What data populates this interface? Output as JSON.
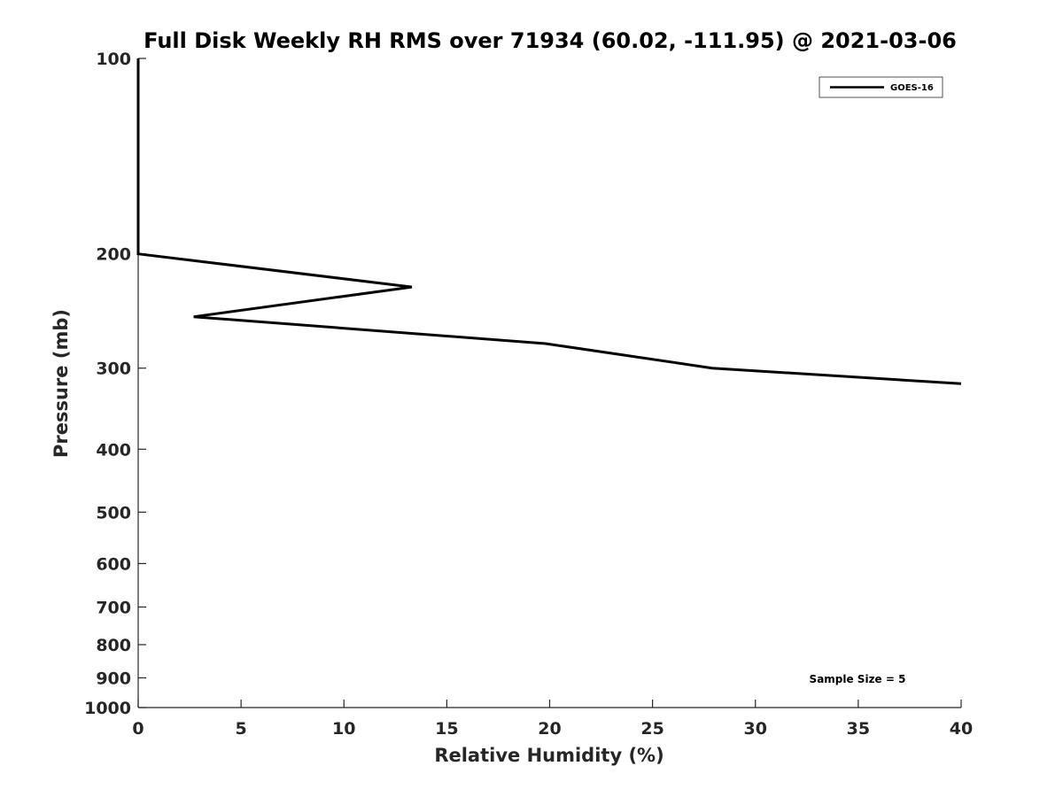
{
  "chart_data": {
    "type": "line",
    "title": "Full Disk Weekly RH RMS over 71934 (60.02, -111.95) @ 2021-03-06",
    "xlabel": "Relative Humidity (%)",
    "ylabel": "Pressure (mb)",
    "xlim": [
      0,
      40
    ],
    "ylim": [
      100,
      1000
    ],
    "y_scale": "log",
    "y_reversed": true,
    "x_ticks": [
      0,
      5,
      10,
      15,
      20,
      25,
      30,
      35,
      40
    ],
    "y_ticks": [
      100,
      200,
      300,
      400,
      500,
      600,
      700,
      800,
      900,
      1000
    ],
    "grid": false,
    "legend_position": "top-right",
    "series": [
      {
        "name": "GOES-16",
        "color": "#000000",
        "points": [
          {
            "x": 0,
            "y": 100
          },
          {
            "x": 0,
            "y": 150
          },
          {
            "x": 0,
            "y": 200
          },
          {
            "x": 13.3,
            "y": 225
          },
          {
            "x": 2.7,
            "y": 250
          },
          {
            "x": 19.8,
            "y": 275
          },
          {
            "x": 27.9,
            "y": 300
          },
          {
            "x": 40,
            "y": 317
          }
        ]
      }
    ],
    "annotation": "Sample Size = 5"
  }
}
